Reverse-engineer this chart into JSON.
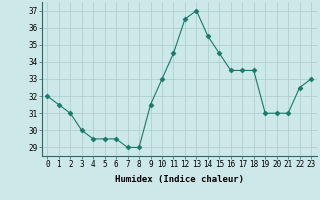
{
  "x": [
    0,
    1,
    2,
    3,
    4,
    5,
    6,
    7,
    8,
    9,
    10,
    11,
    12,
    13,
    14,
    15,
    16,
    17,
    18,
    19,
    20,
    21,
    22,
    23
  ],
  "y": [
    32.0,
    31.5,
    31.0,
    30.0,
    29.5,
    29.5,
    29.5,
    29.0,
    29.0,
    31.5,
    33.0,
    34.5,
    36.5,
    37.0,
    35.5,
    34.5,
    33.5,
    33.5,
    33.5,
    31.0,
    31.0,
    31.0,
    32.5,
    33.0
  ],
  "xlabel": "Humidex (Indice chaleur)",
  "xlim": [
    -0.5,
    23.5
  ],
  "ylim": [
    28.5,
    37.5
  ],
  "yticks": [
    29,
    30,
    31,
    32,
    33,
    34,
    35,
    36,
    37
  ],
  "xticks": [
    0,
    1,
    2,
    3,
    4,
    5,
    6,
    7,
    8,
    9,
    10,
    11,
    12,
    13,
    14,
    15,
    16,
    17,
    18,
    19,
    20,
    21,
    22,
    23
  ],
  "line_color": "#1a7a6a",
  "marker": "D",
  "marker_size": 2.5,
  "bg_color": "#cce8e8",
  "grid_color": "#aacccc",
  "label_fontsize": 6.5,
  "tick_fontsize": 5.5
}
